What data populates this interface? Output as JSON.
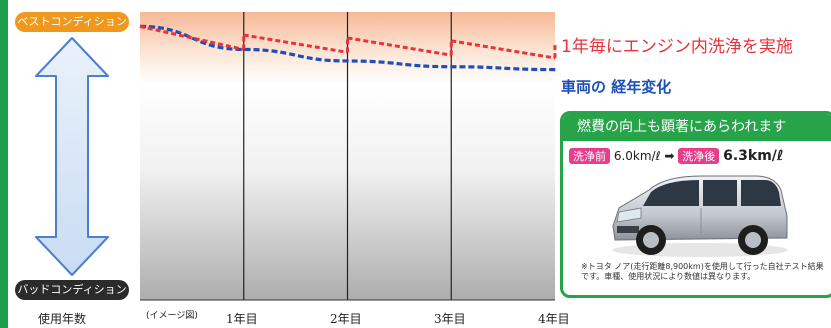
{
  "left_scale": {
    "top_label": "ベストコンディション",
    "bottom_label": "バッドコンディション"
  },
  "x_axis": {
    "title": "使用年数",
    "note": "(イメージ図)",
    "ticks": [
      "1年目",
      "2年目",
      "3年目",
      "4年目"
    ]
  },
  "chart_data": {
    "type": "line",
    "x": [
      0,
      1,
      2,
      3,
      4
    ],
    "xlabel": "使用年数",
    "ylabel": "",
    "series": [
      {
        "name": "1年毎にエンジン内洗浄を実施",
        "color": "#e8323c",
        "x": [
          0,
          1,
          1,
          2,
          2,
          3,
          3,
          4,
          4
        ],
        "values": [
          95,
          87,
          92,
          86,
          91,
          85,
          90,
          84,
          89
        ]
      },
      {
        "name": "車両の 経年変化",
        "color": "#1f4fb5",
        "x": [
          0,
          1,
          2,
          3,
          4
        ],
        "values": [
          95,
          87,
          83,
          81,
          80
        ]
      }
    ]
  },
  "legend": {
    "red_line": "1年毎にエンジン内洗浄を実施",
    "blue_line": "車両の 経年変化"
  },
  "panel": {
    "title": "燃費の向上も顕著にあらわれます",
    "before_tag": "洗浄前",
    "before_value": "6.0km/ℓ",
    "arrow": "➡",
    "after_tag": "洗浄後",
    "after_value": "6.3km/ℓ",
    "note": "※トヨタ ノア(走行距離8,900km)を使用して行った自社テスト結果です。車種、使用状況により数値は異なります。"
  },
  "colors": {
    "green": "#27a34a",
    "orange": "#f0981e",
    "red": "#e8323c",
    "blue": "#1f4fb5",
    "pink": "#e83d8c"
  }
}
